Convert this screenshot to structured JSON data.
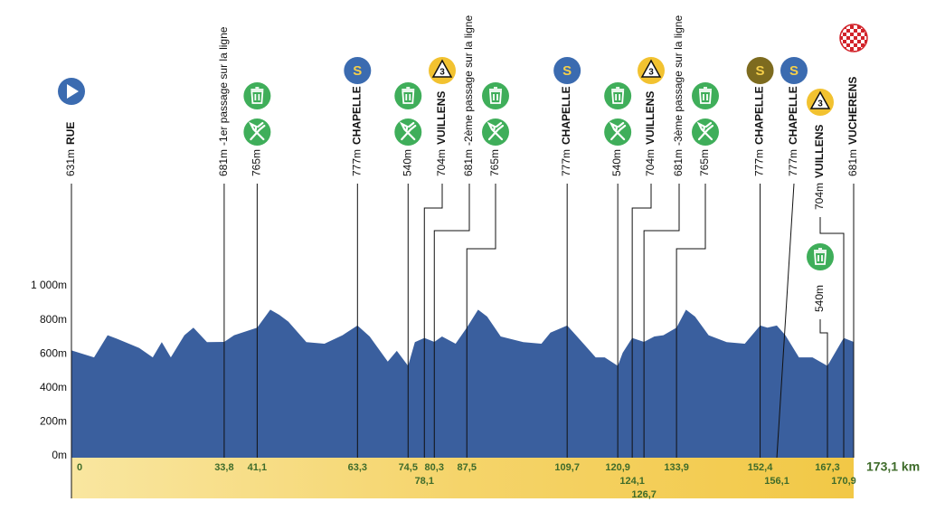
{
  "chart_data": {
    "type": "area",
    "color": "#3a5f9e",
    "x": [
      0,
      5,
      8,
      10,
      15,
      18,
      20,
      22,
      25,
      27,
      30,
      33.8,
      36,
      41.1,
      44,
      46,
      48,
      52,
      56,
      60,
      63.3,
      66,
      70,
      72,
      74.5,
      76,
      78.1,
      80.3,
      82,
      85,
      87.5,
      90,
      92,
      95,
      100,
      104,
      106,
      109.7,
      113,
      116,
      118,
      120.9,
      122,
      124.1,
      126.7,
      129,
      131,
      133.9,
      136,
      138,
      141,
      145,
      149,
      152.4,
      154,
      156.1,
      158,
      161,
      164,
      167.3,
      170.9,
      173.1
    ],
    "values": [
      631,
      590,
      720,
      700,
      645,
      590,
      680,
      590,
      720,
      765,
      680,
      681,
      720,
      765,
      870,
      840,
      800,
      680,
      670,
      720,
      777,
      713,
      565,
      628,
      540,
      680,
      704,
      681,
      713,
      670,
      765,
      870,
      830,
      713,
      680,
      670,
      735,
      777,
      680,
      590,
      590,
      540,
      617,
      704,
      681,
      713,
      720,
      765,
      870,
      830,
      720,
      680,
      670,
      777,
      765,
      777,
      720,
      590,
      590,
      540,
      704,
      681
    ],
    "xlim": [
      0,
      173.1
    ],
    "ylim": [
      0,
      1000
    ],
    "yticks": [
      {
        "value": 0,
        "label": "0m"
      },
      {
        "value": 200,
        "label": "200m"
      },
      {
        "value": 400,
        "label": "400m"
      },
      {
        "value": 600,
        "label": "600m"
      },
      {
        "value": 800,
        "label": "800m"
      },
      {
        "value": 1000,
        "label": "1 000m"
      }
    ],
    "waypoints": [
      {
        "km": 0,
        "altitude": "631m",
        "name": "RUE",
        "icons": [
          {
            "type": "start",
            "color": "#3b6bb0"
          }
        ]
      },
      {
        "km": {
          "value": 33.8,
          "label": "33,8"
        },
        "altitude": "681m",
        "note": "-1er passage sur la ligne",
        "icons": []
      },
      {
        "km": {
          "value": 41.1,
          "label": "41,1"
        },
        "altitude": "765m",
        "icons": [
          {
            "type": "trash",
            "color": "#3fae5a"
          },
          {
            "type": "food",
            "color": "#3fae5a"
          }
        ]
      },
      {
        "km": {
          "value": 63.3,
          "label": "63,3"
        },
        "altitude": "777m",
        "name": "CHAPELLE",
        "icons": [
          {
            "type": "sprint",
            "label": "S",
            "color": "#3b6bb0"
          }
        ]
      },
      {
        "km": {
          "value": 74.5,
          "label": "74,5"
        },
        "altitude": "540m",
        "icons": [
          {
            "type": "trash",
            "color": "#3fae5a"
          },
          {
            "type": "food",
            "color": "#3fae5a"
          }
        ]
      },
      {
        "km": {
          "value": 78.1,
          "label": "78,1"
        },
        "altitude": "704m",
        "name": "VUILLENS",
        "icons": [
          {
            "type": "kom",
            "label": "3",
            "color": "#f2c230"
          }
        ]
      },
      {
        "km": {
          "value": 80.3,
          "label": "80,3"
        },
        "altitude": "681m",
        "note": "-2ème passage sur la ligne",
        "icons": []
      },
      {
        "km": {
          "value": 87.5,
          "label": "87,5"
        },
        "altitude": "765m",
        "icons": [
          {
            "type": "trash",
            "color": "#3fae5a"
          },
          {
            "type": "food",
            "color": "#3fae5a"
          }
        ]
      },
      {
        "km": {
          "value": 109.7,
          "label": "109,7"
        },
        "altitude": "777m",
        "name": "CHAPELLE",
        "icons": [
          {
            "type": "sprint",
            "label": "S",
            "color": "#3b6bb0"
          }
        ]
      },
      {
        "km": {
          "value": 120.9,
          "label": "120,9"
        },
        "altitude": "540m",
        "icons": [
          {
            "type": "trash",
            "color": "#3fae5a"
          },
          {
            "type": "food",
            "color": "#3fae5a"
          }
        ]
      },
      {
        "km": {
          "value": 124.1,
          "label": "124,1"
        },
        "altitude": "704m",
        "name": "VUILLENS",
        "icons": [
          {
            "type": "kom",
            "label": "3",
            "color": "#f2c230"
          }
        ]
      },
      {
        "km": {
          "value": 126.7,
          "label": "126,7"
        },
        "altitude": "681m",
        "note": "-3ème passage sur la ligne",
        "icons": []
      },
      {
        "km": {
          "value": 133.9,
          "label": "133,9"
        },
        "altitude": "765m",
        "icons": [
          {
            "type": "trash",
            "color": "#3fae5a"
          },
          {
            "type": "food",
            "color": "#3fae5a"
          }
        ]
      },
      {
        "km": {
          "value": 152.4,
          "label": "152,4"
        },
        "altitude": "777m",
        "name": "CHAPELLE",
        "icons": [
          {
            "type": "sprint",
            "label": "S",
            "color": "#7d6b1f"
          }
        ]
      },
      {
        "km": {
          "value": 156.1,
          "label": "156,1"
        },
        "altitude": "777m",
        "name": "CHAPELLE",
        "icons": [
          {
            "type": "sprint",
            "label": "S",
            "color": "#3b6bb0"
          }
        ]
      },
      {
        "km": {
          "value": 167.3,
          "label": "167,3"
        },
        "altitude": "540m",
        "icons": [
          {
            "type": "trash",
            "color": "#3fae5a"
          }
        ]
      },
      {
        "km": {
          "value": 170.9,
          "label": "170,9"
        },
        "altitude": "704m",
        "name": "VUILLENS",
        "icons": [
          {
            "type": "kom",
            "label": "3",
            "color": "#f2c230"
          }
        ]
      },
      {
        "km": {
          "value": 173.1,
          "label": "173,1 km"
        },
        "altitude": "681m",
        "name": "VUCHERENS",
        "icons": [
          {
            "type": "finish",
            "color": "#d2232a"
          }
        ]
      }
    ]
  }
}
